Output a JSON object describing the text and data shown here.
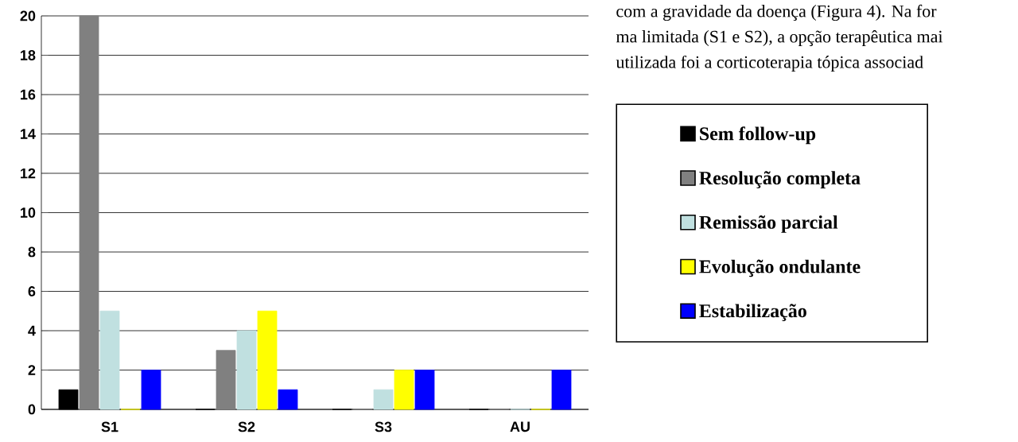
{
  "chart_data": {
    "type": "bar",
    "categories": [
      "S1",
      "S2",
      "S3",
      "AU"
    ],
    "series": [
      {
        "name": "Sem follow-up",
        "color": "#000000",
        "values": [
          1,
          0,
          0,
          0
        ]
      },
      {
        "name": "Resolução completa",
        "color": "#808080",
        "values": [
          20,
          3,
          0,
          0
        ]
      },
      {
        "name": "Remissão parcial",
        "color": "#c0e0e0",
        "values": [
          5,
          4,
          1,
          0
        ]
      },
      {
        "name": "Evolução ondulante",
        "color": "#ffff00",
        "values": [
          0,
          5,
          2,
          0
        ]
      },
      {
        "name": "Estabilização",
        "color": "#0000ff",
        "values": [
          2,
          1,
          2,
          2
        ]
      }
    ],
    "ylim": [
      0,
      20
    ],
    "yticks": [
      0,
      2,
      4,
      6,
      8,
      10,
      12,
      14,
      16,
      18,
      20
    ],
    "grid": "y",
    "legend": "right",
    "annotations": [
      "com a gravidade da doença (Figura 4). Na for",
      "ma limitada (S1 e S2), a opção terapêutica mai",
      "utilizada foi a corticoterapia tópica associad"
    ]
  }
}
